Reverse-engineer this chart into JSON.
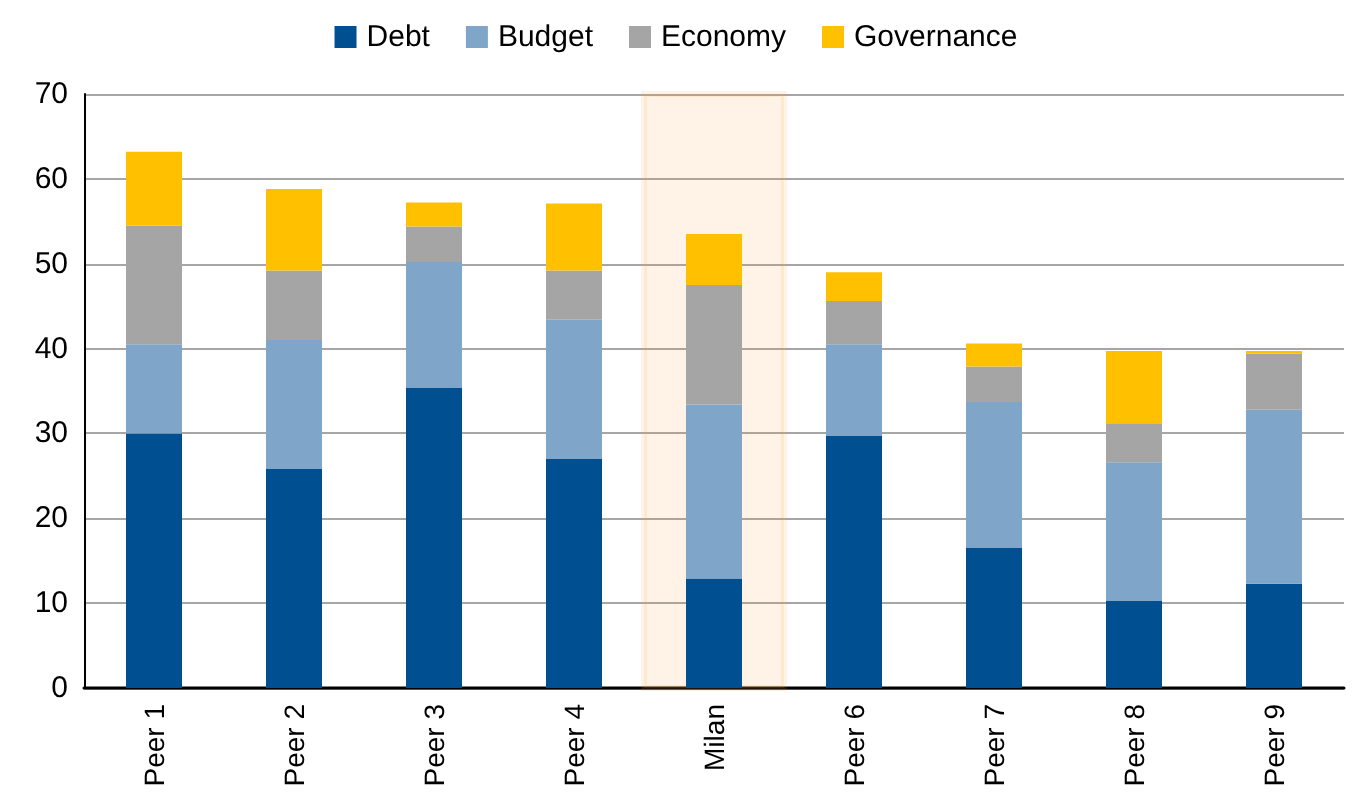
{
  "chart_data": {
    "type": "bar",
    "stacked": true,
    "categories": [
      "Peer 1",
      "Peer 2",
      "Peer 3",
      "Peer 4",
      "Milan",
      "Peer 6",
      "Peer 7",
      "Peer 8",
      "Peer 9"
    ],
    "series": [
      {
        "name": "Debt",
        "color": "#004f90",
        "values": [
          30,
          25.8,
          35.4,
          27,
          12.9,
          29.7,
          16.5,
          10.3,
          12.3
        ]
      },
      {
        "name": "Budget",
        "color": "#7fa6c9",
        "values": [
          10.5,
          15.2,
          14.8,
          16.4,
          20.5,
          10.8,
          17.2,
          16.3,
          20.5
        ]
      },
      {
        "name": "Economy",
        "color": "#a5a5a5",
        "values": [
          14,
          8.2,
          4.2,
          5.8,
          14.1,
          5.1,
          4.2,
          4.6,
          6.6
        ]
      },
      {
        "name": "Governance",
        "color": "#ffc000",
        "values": [
          8.7,
          9.6,
          2.8,
          7.9,
          6,
          3.4,
          2.7,
          8.5,
          0.3
        ]
      }
    ],
    "bands": [
      {
        "axis": "x",
        "from": "Milan",
        "to": "Milan",
        "color": "#f39a32"
      }
    ],
    "ylim": [
      0,
      70
    ],
    "yticks": [
      0,
      10,
      20,
      30,
      40,
      50,
      60,
      70
    ],
    "grid": "y",
    "legend": "top"
  }
}
